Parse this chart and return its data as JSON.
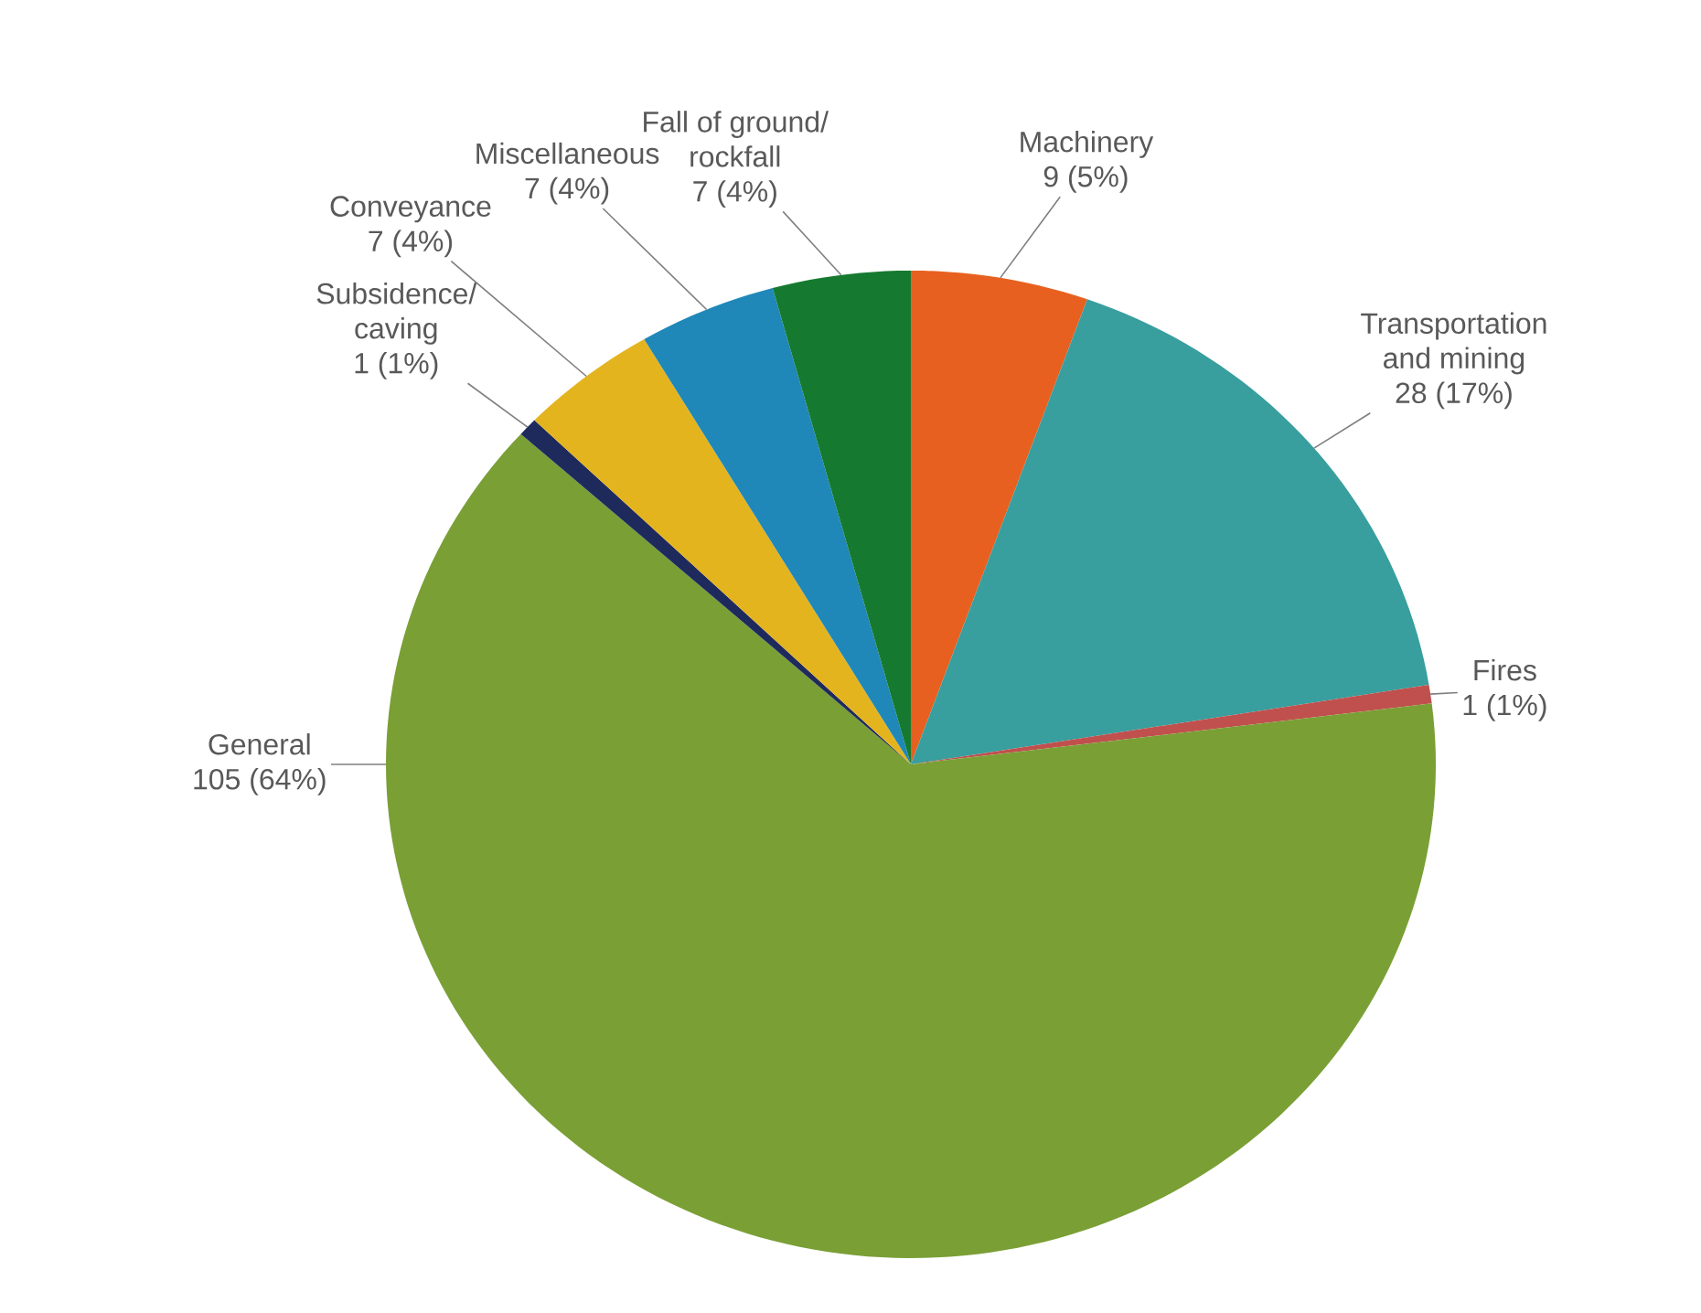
{
  "chart_data": {
    "type": "pie",
    "categories": [
      "Machinery",
      "Transportation and mining",
      "Fires",
      "General",
      "Subsidence/ caving",
      "Conveyance",
      "Miscellaneous",
      "Fall of ground/ rockfall"
    ],
    "values": [
      9,
      28,
      1,
      105,
      1,
      7,
      7,
      7
    ],
    "colors": [
      "#e8601f",
      "#389e9e",
      "#c0504d",
      "#7a9f35",
      "#1f2a5c",
      "#e4b41f",
      "#1f88b8",
      "#157a2f"
    ],
    "value_labels": [
      "9 (5%)",
      "28 (17%)",
      "1 (1%)",
      "105 (64%)",
      "1 (1%)",
      "7 (4%)",
      "7 (4%)",
      "7 (4%)"
    ]
  }
}
